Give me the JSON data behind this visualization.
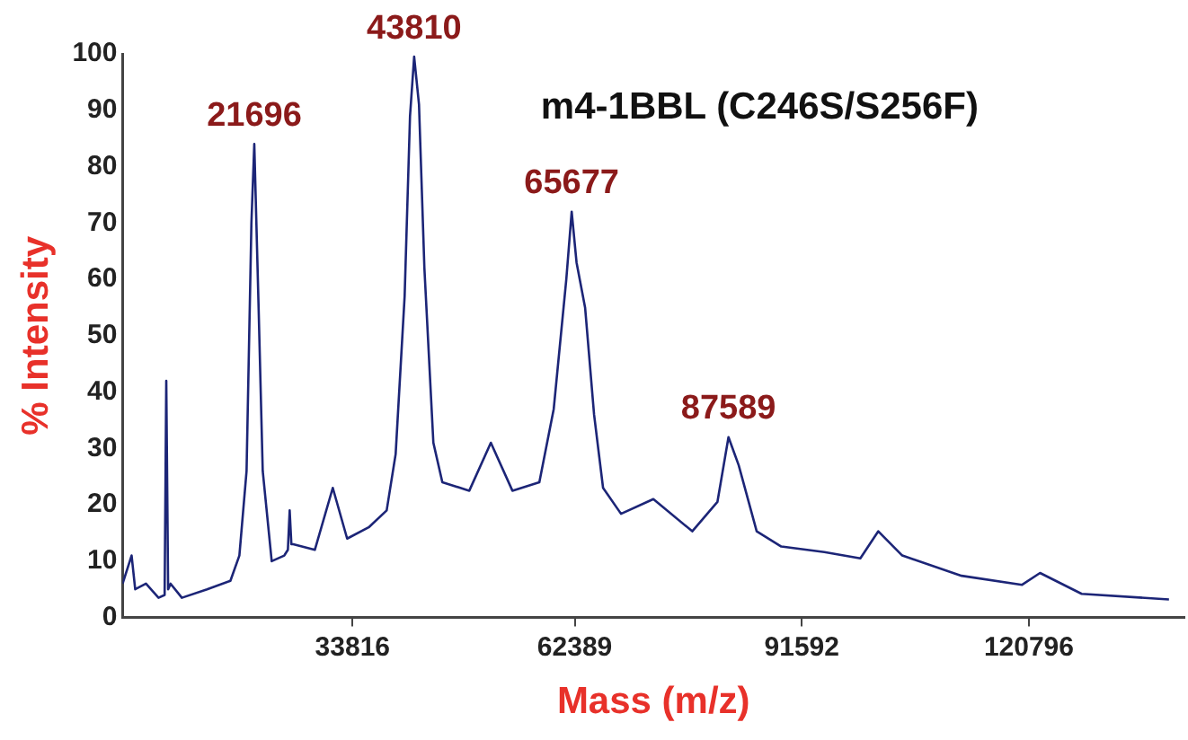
{
  "chart_data": {
    "type": "line",
    "title": "m4-1BBL (C246S/S256F)",
    "xlabel": "Mass (m/z)",
    "ylabel": "% Intensity",
    "xlim": [
      4248,
      140795
    ],
    "xticks": [
      33816,
      62389,
      91592,
      120796
    ],
    "ylim": [
      0,
      100
    ],
    "yticks": [
      0,
      10,
      20,
      30,
      40,
      50,
      60,
      70,
      80,
      90,
      100
    ],
    "marker": "none",
    "series": [
      {
        "color": "#1c2577",
        "x": [
          4248,
          5403,
          5865,
          7251,
          8868,
          9650,
          9861,
          10100,
          10416,
          11871,
          15105,
          18108,
          19263,
          20187,
          20811,
          21181,
          21735,
          22266,
          23421,
          25038,
          25500,
          25731,
          25950,
          26193,
          28965,
          31275,
          33123,
          35895,
          38205,
          39360,
          40515,
          41208,
          41739,
          42363,
          43056,
          44211,
          45366,
          48831,
          51603,
          54375,
          57840,
          59688,
          61305,
          61998,
          62622,
          63723,
          64878,
          66033,
          68343,
          72501,
          77505,
          80739,
          82163,
          83479,
          85790,
          88953,
          94497,
          99120,
          101430,
          104510,
          112140,
          119920,
          122230,
          127580,
          138810
        ],
        "values": [
          6,
          11,
          5,
          6,
          3.5,
          4,
          42,
          5,
          6,
          3.5,
          5,
          6.5,
          11,
          26,
          70,
          84,
          55,
          26,
          10,
          11,
          12,
          19,
          13,
          13,
          12,
          23,
          14,
          16,
          19,
          29,
          57,
          89,
          99.5,
          91,
          62,
          31,
          24,
          22.5,
          31,
          22.5,
          24,
          37,
          60,
          72,
          63,
          55,
          36,
          23,
          18.4,
          21,
          15.3,
          20.5,
          32,
          27,
          15.3,
          12.6,
          11.6,
          10.5,
          15.3,
          11,
          7.4,
          5.8,
          7.9,
          4.2,
          3.2
        ]
      }
    ],
    "annotations": [
      {
        "text": "21696",
        "x": 21181,
        "y": 84
      },
      {
        "text": "43810",
        "x": 41739,
        "y": 99.5
      },
      {
        "text": "65677",
        "x": 61998,
        "y": 72
      },
      {
        "text": "87589",
        "x": 82163,
        "y": 32
      }
    ]
  }
}
